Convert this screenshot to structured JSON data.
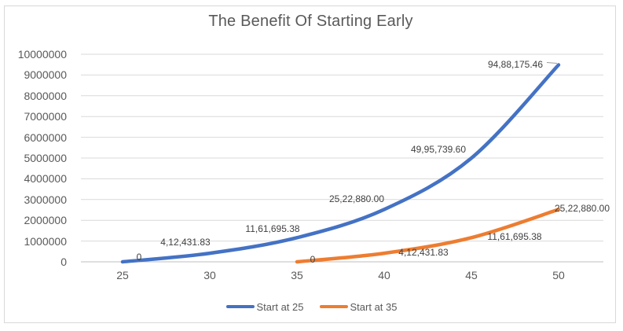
{
  "chart_data": {
    "type": "line",
    "title": "The Benefit Of Starting Early",
    "xlabel": "",
    "ylabel": "",
    "xlim": [
      25,
      50
    ],
    "ylim": [
      0,
      10000000
    ],
    "x_ticks": [
      "25",
      "30",
      "35",
      "40",
      "45",
      "50"
    ],
    "y_ticks": [
      "0",
      "1000000",
      "2000000",
      "3000000",
      "4000000",
      "5000000",
      "6000000",
      "7000000",
      "8000000",
      "9000000",
      "10000000"
    ],
    "grid": true,
    "smooth_lines": true,
    "legend_position": "bottom",
    "series": [
      {
        "name": "Start at 25",
        "color": "#4472C4",
        "x": [
          25,
          30,
          35,
          40,
          45,
          50
        ],
        "values": [
          0,
          412431.83,
          1161695.38,
          2522880.0,
          4995739.6,
          9488175.46
        ],
        "point_labels": [
          "0",
          "4,12,431.83",
          "11,61,695.38",
          "25,22,880.00",
          "49,95,739.60",
          "94,88,175.46"
        ]
      },
      {
        "name": "Start at 35",
        "color": "#ED7D31",
        "x": [
          35,
          40,
          45,
          50
        ],
        "values": [
          0,
          412431.83,
          1161695.38,
          2522880.0
        ],
        "point_labels": [
          "0",
          "4,12,431.83",
          "11,61,695.38",
          "25,22,880.00"
        ]
      }
    ],
    "colors": {
      "grid_line": "#D9D9D9",
      "axis_line": "#BFBFBF",
      "tick_text": "#595959",
      "title_text": "#595959",
      "data_label_text": "#404040",
      "chart_border": "#D9D9D9",
      "background": "#FFFFFF"
    }
  }
}
